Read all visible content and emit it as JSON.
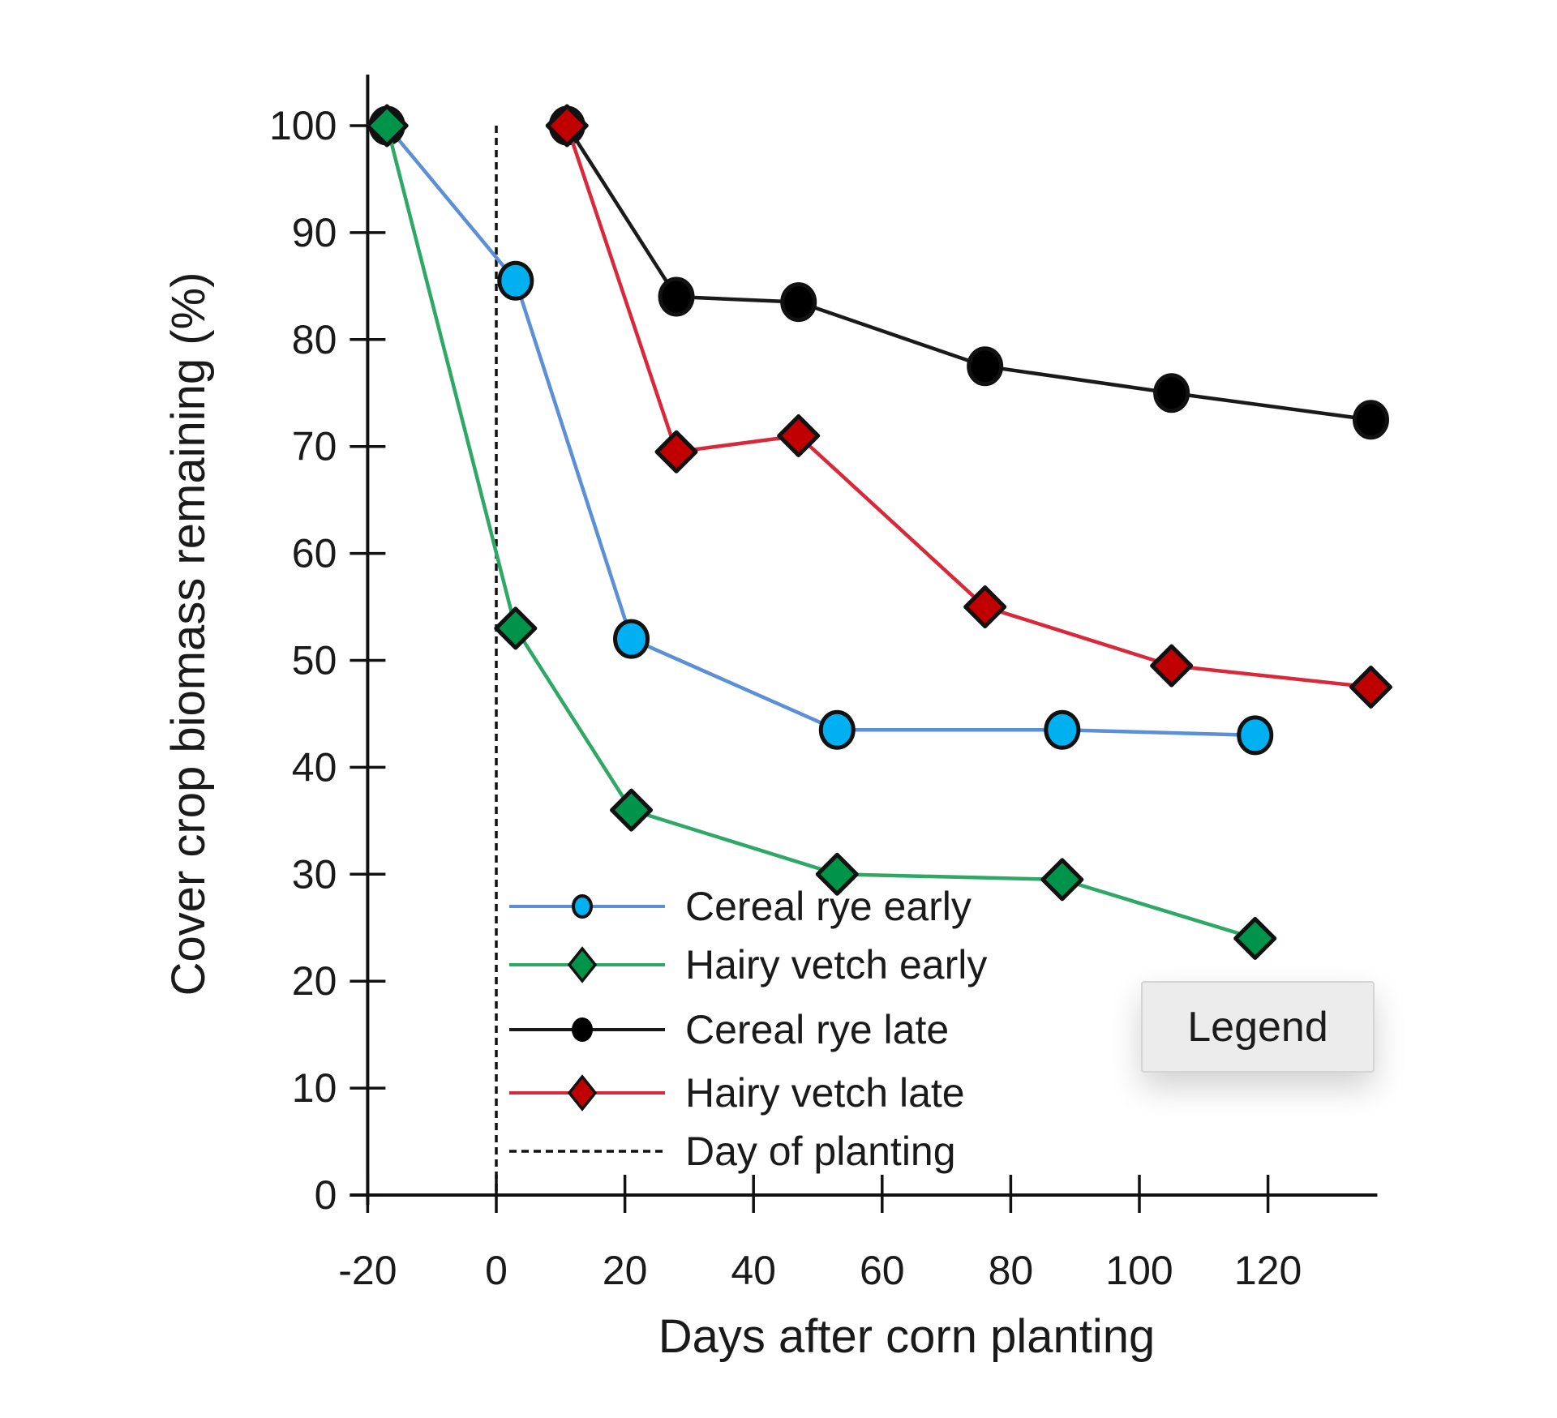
{
  "chart_data": {
    "type": "line",
    "title": "",
    "xlabel": "Days after corn planting",
    "ylabel": "Cover crop biomass remaining (%)",
    "xlim": [
      -20,
      137
    ],
    "ylim": [
      0,
      105
    ],
    "x_ticks": [
      -20,
      0,
      20,
      40,
      60,
      80,
      100,
      120
    ],
    "y_ticks": [
      0,
      10,
      20,
      30,
      40,
      50,
      60,
      70,
      80,
      90,
      100
    ],
    "grid": false,
    "legend_position": "lower-center-inside",
    "annotations": [
      {
        "type": "vline",
        "x": 0,
        "style": "dashed",
        "label": "Day of planting"
      }
    ],
    "series": [
      {
        "name": "Cereal rye early",
        "color": "#5b8fd6",
        "marker": "circle",
        "marker_fill": "#00b0f0",
        "x": [
          -17,
          3,
          21,
          53,
          88,
          118
        ],
        "values": [
          100,
          85.5,
          52,
          43.5,
          43.5,
          43
        ]
      },
      {
        "name": "Hairy vetch early",
        "color": "#2ea865",
        "marker": "diamond",
        "marker_fill": "#00934a",
        "x": [
          -17,
          3,
          21,
          53,
          88,
          118
        ],
        "values": [
          100,
          53,
          36,
          30,
          29.5,
          24
        ]
      },
      {
        "name": "Cereal rye late",
        "color": "#1a1a1a",
        "marker": "circle",
        "marker_fill": "#000000",
        "x": [
          11,
          28,
          47,
          76,
          105,
          136
        ],
        "values": [
          100,
          84,
          83.5,
          77.5,
          75,
          72.5
        ]
      },
      {
        "name": "Hairy vetch late",
        "color": "#d9283a",
        "marker": "diamond",
        "marker_fill": "#c00000",
        "x": [
          11,
          28,
          47,
          76,
          105,
          136
        ],
        "values": [
          100,
          69.5,
          71,
          55,
          49.5,
          47.5
        ]
      }
    ]
  },
  "legend": {
    "items": [
      {
        "label": "Cereal rye early"
      },
      {
        "label": "Hairy vetch early"
      },
      {
        "label": "Cereal rye late"
      },
      {
        "label": "Hairy vetch late"
      },
      {
        "label": "Day of planting"
      }
    ]
  },
  "tooltip": {
    "label": "Legend"
  }
}
